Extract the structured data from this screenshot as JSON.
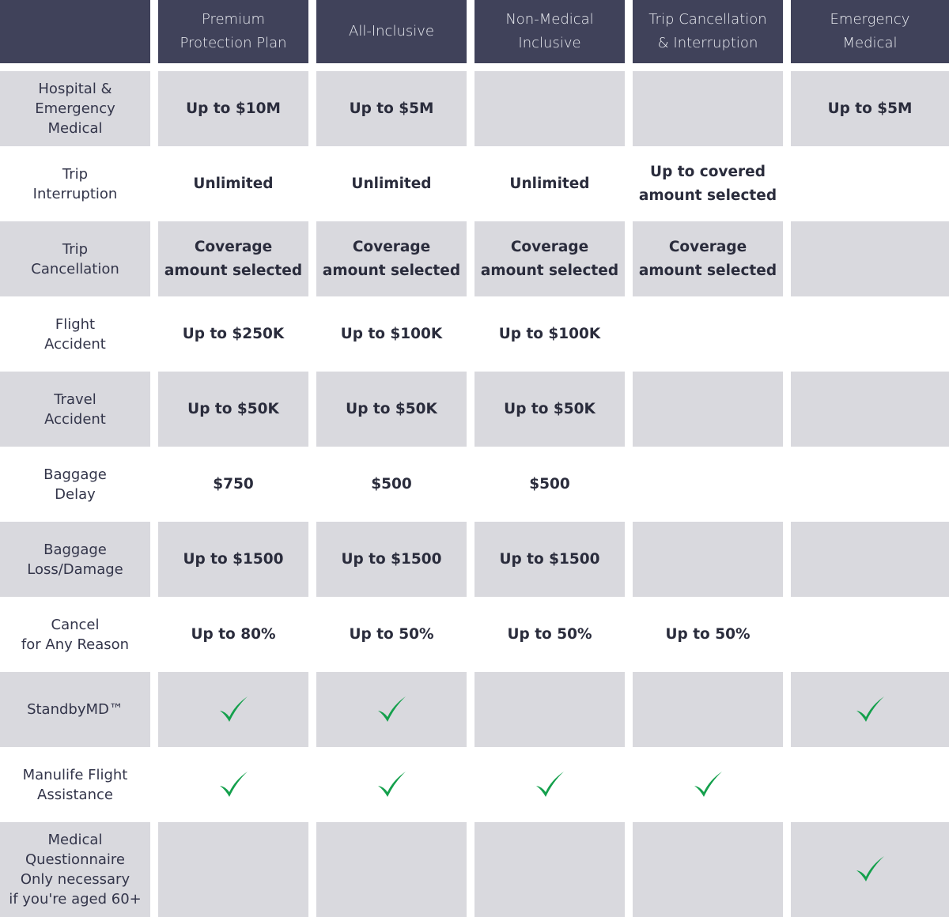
{
  "colors": {
    "header": "#40425a",
    "shaded_cell": "#d9d9de",
    "check": "#14a04c"
  },
  "header": {
    "columns": [
      "Premium\nProtection Plan",
      "All-Inclusive",
      "Non-Medical\nInclusive",
      "Trip Cancellation\n& Interruption",
      "Emergency\nMedical"
    ]
  },
  "rows": [
    {
      "label": "Hospital &\nEmergency\nMedical",
      "cells": [
        "Up to $10M",
        "Up to $5M",
        "",
        "",
        "Up to $5M"
      ]
    },
    {
      "label": "Trip\nInterruption",
      "cells": [
        "Unlimited",
        "Unlimited",
        "Unlimited",
        "Up to covered\namount selected",
        ""
      ]
    },
    {
      "label": "Trip\nCancellation",
      "cells": [
        "Coverage\namount selected",
        "Coverage\namount selected",
        "Coverage\namount selected",
        "Coverage\namount selected",
        ""
      ]
    },
    {
      "label": "Flight\nAccident",
      "cells": [
        "Up to $250K",
        "Up to $100K",
        "Up to $100K",
        "",
        ""
      ]
    },
    {
      "label": "Travel\nAccident",
      "cells": [
        "Up to $50K",
        "Up to $50K",
        "Up to $50K",
        "",
        ""
      ]
    },
    {
      "label": "Baggage\nDelay",
      "cells": [
        "$750",
        "$500",
        "$500",
        "",
        ""
      ]
    },
    {
      "label": "Baggage\nLoss/Damage",
      "cells": [
        "Up to $1500",
        "Up to $1500",
        "Up to $1500",
        "",
        ""
      ]
    },
    {
      "label": "Cancel\nfor Any Reason",
      "cells": [
        "Up to 80%",
        "Up to 50%",
        "Up to 50%",
        "Up to 50%",
        ""
      ]
    },
    {
      "label": "StandbyMD™",
      "cells": [
        "check",
        "check",
        "",
        "",
        "check"
      ]
    },
    {
      "label": "Manulife Flight\nAssistance",
      "cells": [
        "check",
        "check",
        "check",
        "check",
        ""
      ]
    },
    {
      "label": "Medical\nQuestionnaire\nOnly necessary\nif you're aged 60+",
      "cells": [
        "",
        "",
        "",
        "",
        "check"
      ]
    }
  ]
}
